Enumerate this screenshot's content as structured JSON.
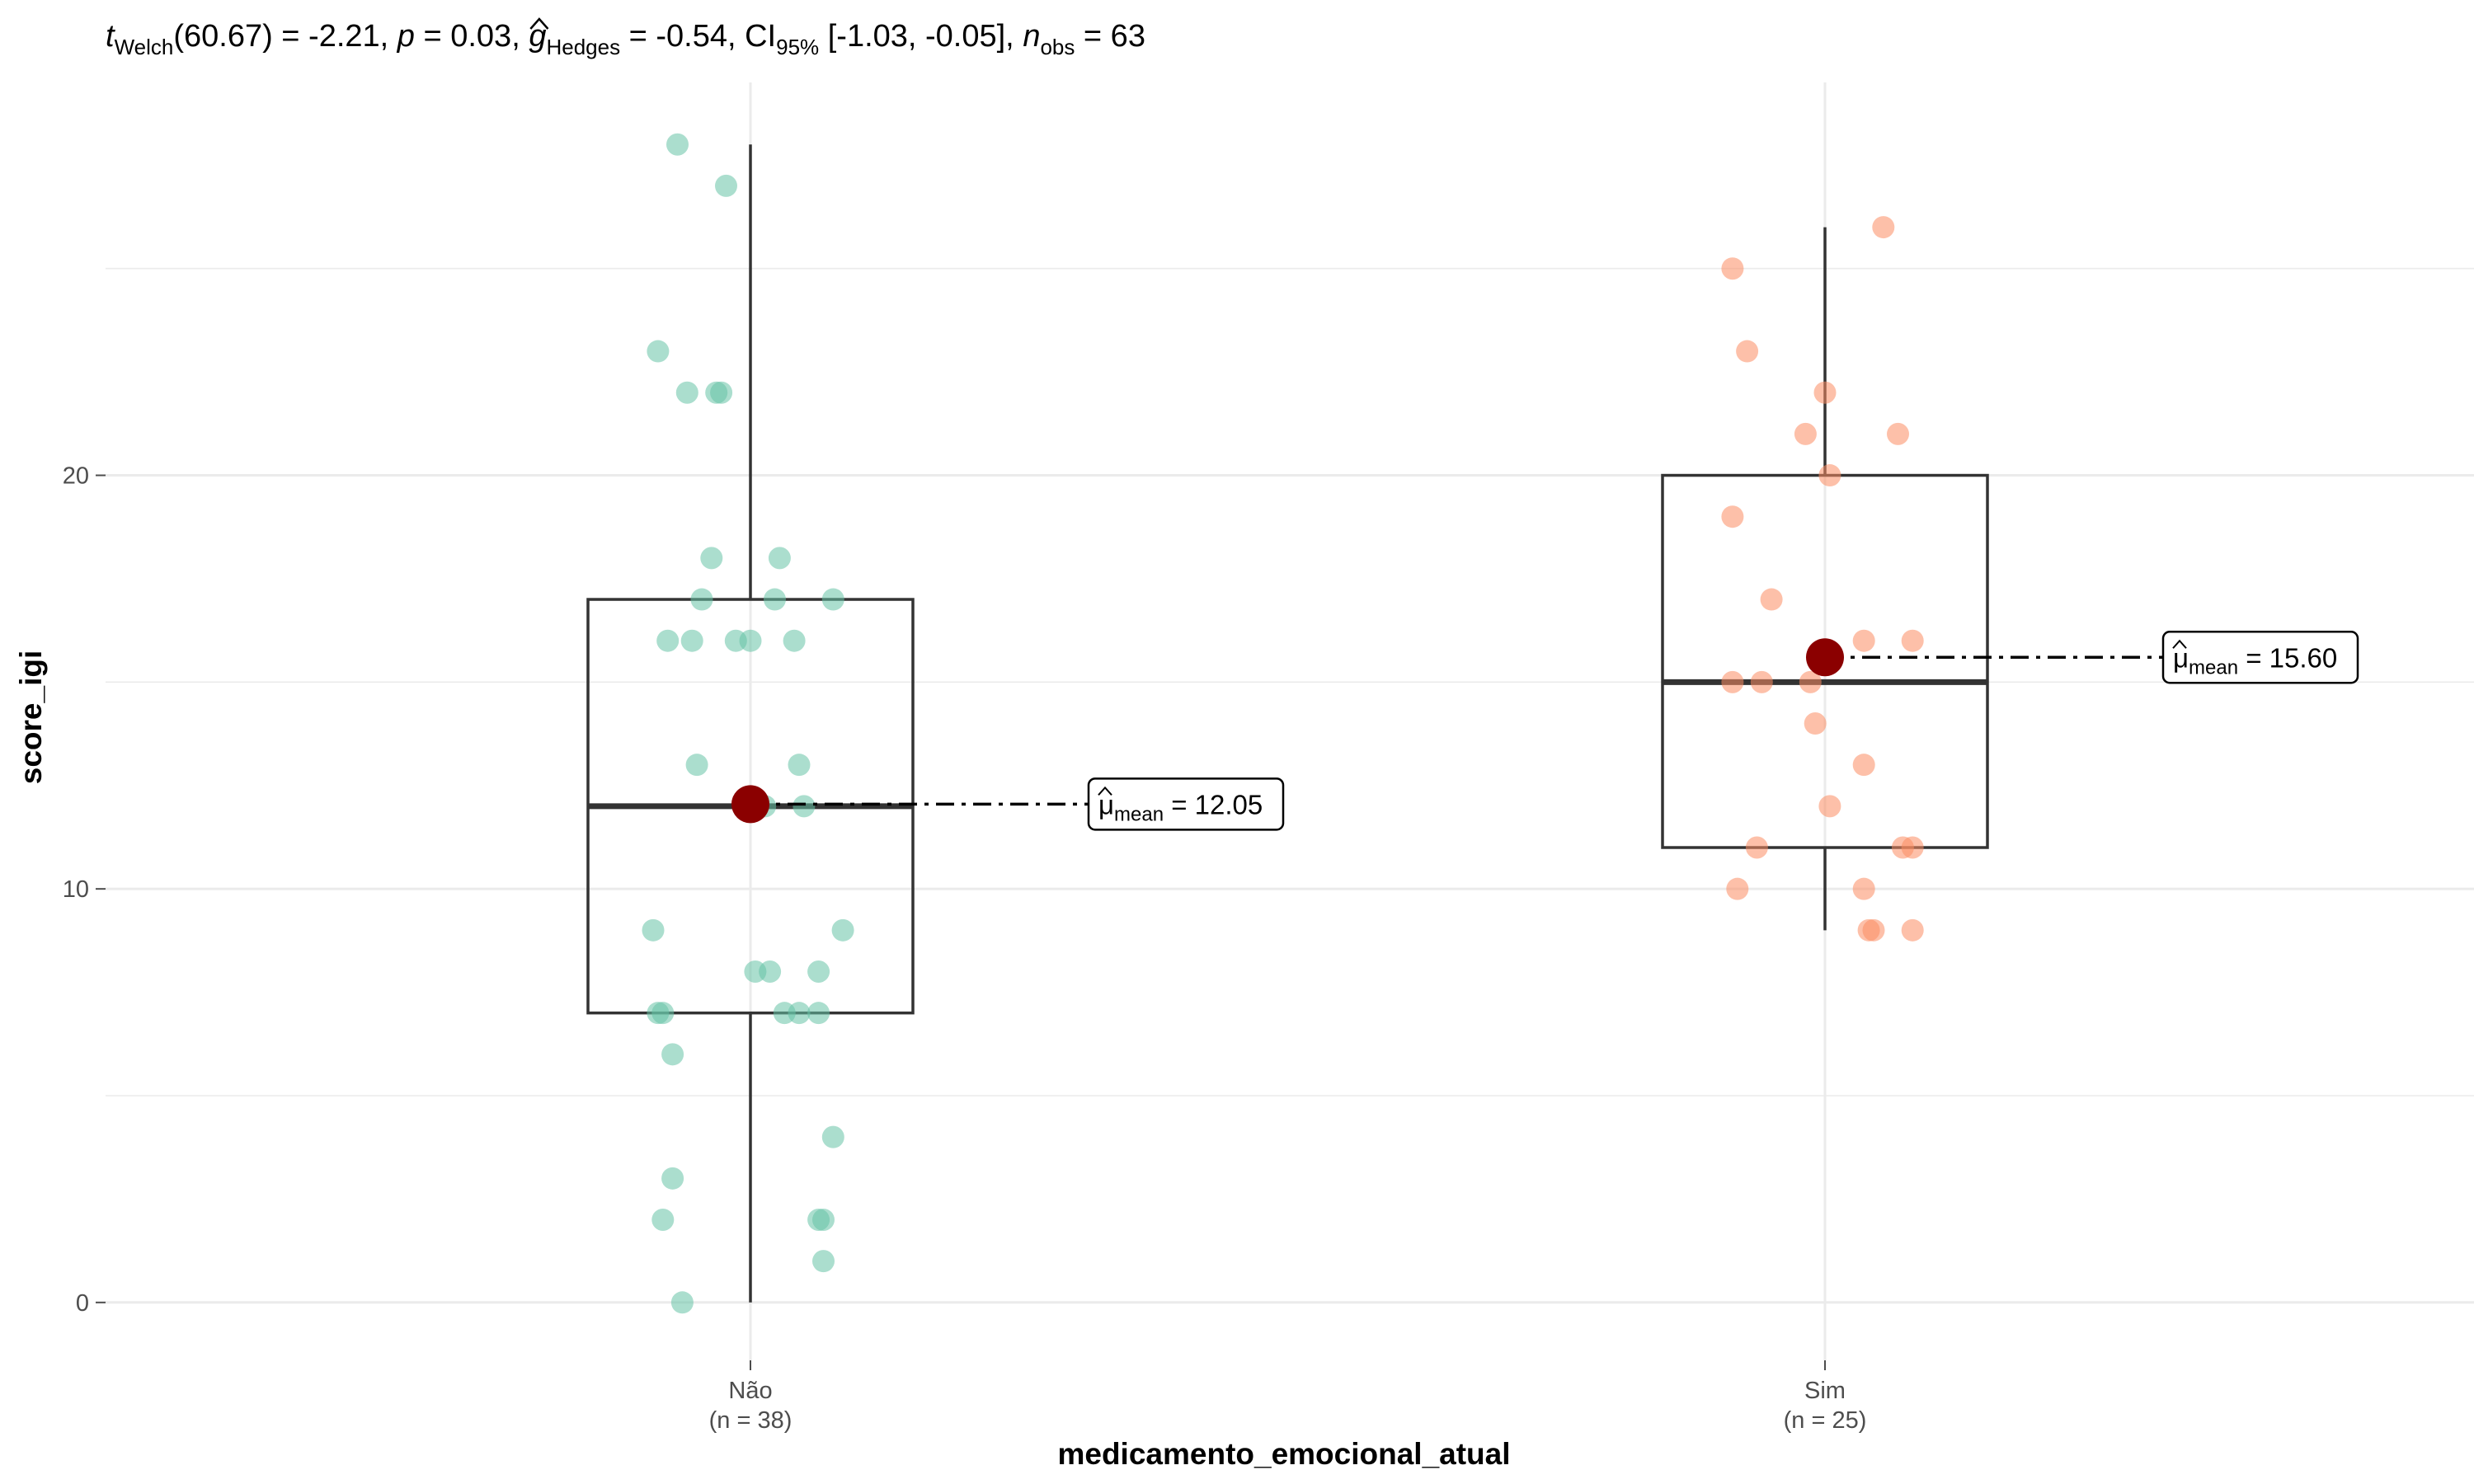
{
  "chart_data": {
    "type": "box",
    "title_parts": {
      "t_symbol": "t",
      "t_sub": "Welch",
      "t_value": "(60.67) = -2.21, ",
      "p_symbol": "p",
      "p_value": " = 0.03, ",
      "g_symbol": "g",
      "g_sub": "Hedges",
      "g_value": " = -0.54, CI",
      "ci_sub": "95%",
      "ci_value": " [-1.03, -0.05], ",
      "n_symbol": "n",
      "n_sub": "obs",
      "n_value": " = 63"
    },
    "xlabel": "medicamento_emocional_atual",
    "ylabel": "score_igi",
    "ylim": [
      -1.2,
      29.5
    ],
    "yticks": [
      0,
      10,
      20
    ],
    "grid": true,
    "groups": [
      {
        "name": "Não",
        "n_label": "(n = 38)",
        "color": "#66c2a5",
        "box": {
          "min": 0,
          "q1": 7,
          "median": 12,
          "q3": 17,
          "max": 28
        },
        "mean": 12.05,
        "mean_label_mu": "μ",
        "mean_label_sub": "mean",
        "mean_label_value": " = 12.05",
        "points": [
          {
            "x": -0.15,
            "y": 28
          },
          {
            "x": -0.05,
            "y": 27
          },
          {
            "x": -0.19,
            "y": 23
          },
          {
            "x": -0.13,
            "y": 22
          },
          {
            "x": -0.07,
            "y": 22
          },
          {
            "x": -0.06,
            "y": 22
          },
          {
            "x": -0.08,
            "y": 18
          },
          {
            "x": 0.06,
            "y": 18
          },
          {
            "x": -0.1,
            "y": 17
          },
          {
            "x": 0.05,
            "y": 17
          },
          {
            "x": 0.17,
            "y": 17
          },
          {
            "x": -0.17,
            "y": 16
          },
          {
            "x": -0.12,
            "y": 16
          },
          {
            "x": -0.03,
            "y": 16
          },
          {
            "x": 0.0,
            "y": 16
          },
          {
            "x": 0.09,
            "y": 16
          },
          {
            "x": -0.11,
            "y": 13
          },
          {
            "x": 0.1,
            "y": 13
          },
          {
            "x": 0.03,
            "y": 12
          },
          {
            "x": 0.11,
            "y": 12
          },
          {
            "x": -0.2,
            "y": 9
          },
          {
            "x": 0.19,
            "y": 9
          },
          {
            "x": 0.01,
            "y": 8
          },
          {
            "x": 0.04,
            "y": 8
          },
          {
            "x": 0.14,
            "y": 8
          },
          {
            "x": -0.19,
            "y": 7
          },
          {
            "x": -0.18,
            "y": 7
          },
          {
            "x": 0.07,
            "y": 7
          },
          {
            "x": 0.1,
            "y": 7
          },
          {
            "x": 0.14,
            "y": 7
          },
          {
            "x": -0.16,
            "y": 6
          },
          {
            "x": 0.17,
            "y": 4
          },
          {
            "x": -0.16,
            "y": 3
          },
          {
            "x": -0.18,
            "y": 2
          },
          {
            "x": 0.14,
            "y": 2
          },
          {
            "x": 0.15,
            "y": 2
          },
          {
            "x": 0.15,
            "y": 1
          },
          {
            "x": -0.14,
            "y": 0
          }
        ]
      },
      {
        "name": "Sim",
        "n_label": "(n = 25)",
        "color": "#fc8d62",
        "box": {
          "min": 9,
          "q1": 11,
          "median": 15,
          "q3": 20,
          "max": 26
        },
        "mean": 15.6,
        "mean_label_mu": "μ",
        "mean_label_sub": "mean",
        "mean_label_value": " = 15.60",
        "points": [
          {
            "x": 0.12,
            "y": 26
          },
          {
            "x": -0.19,
            "y": 25
          },
          {
            "x": -0.16,
            "y": 23
          },
          {
            "x": 0.0,
            "y": 22
          },
          {
            "x": -0.04,
            "y": 21
          },
          {
            "x": 0.15,
            "y": 21
          },
          {
            "x": 0.01,
            "y": 20
          },
          {
            "x": -0.19,
            "y": 19
          },
          {
            "x": -0.11,
            "y": 17
          },
          {
            "x": 0.08,
            "y": 16
          },
          {
            "x": 0.18,
            "y": 16
          },
          {
            "x": -0.19,
            "y": 15
          },
          {
            "x": -0.13,
            "y": 15
          },
          {
            "x": -0.03,
            "y": 15
          },
          {
            "x": -0.02,
            "y": 14
          },
          {
            "x": 0.08,
            "y": 13
          },
          {
            "x": 0.01,
            "y": 12
          },
          {
            "x": -0.14,
            "y": 11
          },
          {
            "x": 0.16,
            "y": 11
          },
          {
            "x": 0.18,
            "y": 11
          },
          {
            "x": -0.18,
            "y": 10
          },
          {
            "x": 0.08,
            "y": 10
          },
          {
            "x": 0.09,
            "y": 9
          },
          {
            "x": 0.1,
            "y": 9
          },
          {
            "x": 0.18,
            "y": 9
          }
        ]
      }
    ]
  }
}
